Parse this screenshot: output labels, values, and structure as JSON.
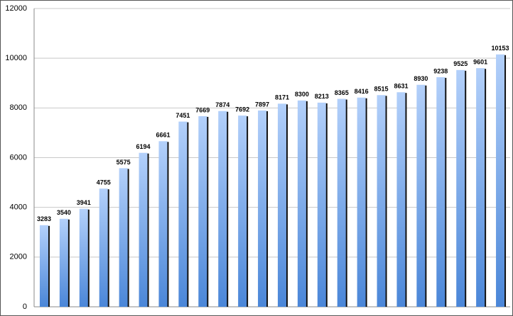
{
  "chart_data": {
    "type": "bar",
    "categories": [
      null,
      null,
      null,
      null,
      null,
      null,
      null,
      null,
      null,
      null,
      null,
      null,
      null,
      null,
      null,
      null,
      null,
      null,
      null,
      null,
      null,
      null,
      null,
      null
    ],
    "values": [
      3283,
      3540,
      3941,
      4755,
      5575,
      6194,
      6661,
      7451,
      7669,
      7874,
      7692,
      7897,
      8171,
      8300,
      8213,
      8365,
      8416,
      8515,
      8631,
      8930,
      9238,
      9525,
      9601,
      10153
    ],
    "color": "#4a86d8",
    "ylim": [
      0,
      12000
    ],
    "yticks": [
      0,
      2000,
      4000,
      6000,
      8000,
      10000,
      12000
    ],
    "grid": true
  }
}
